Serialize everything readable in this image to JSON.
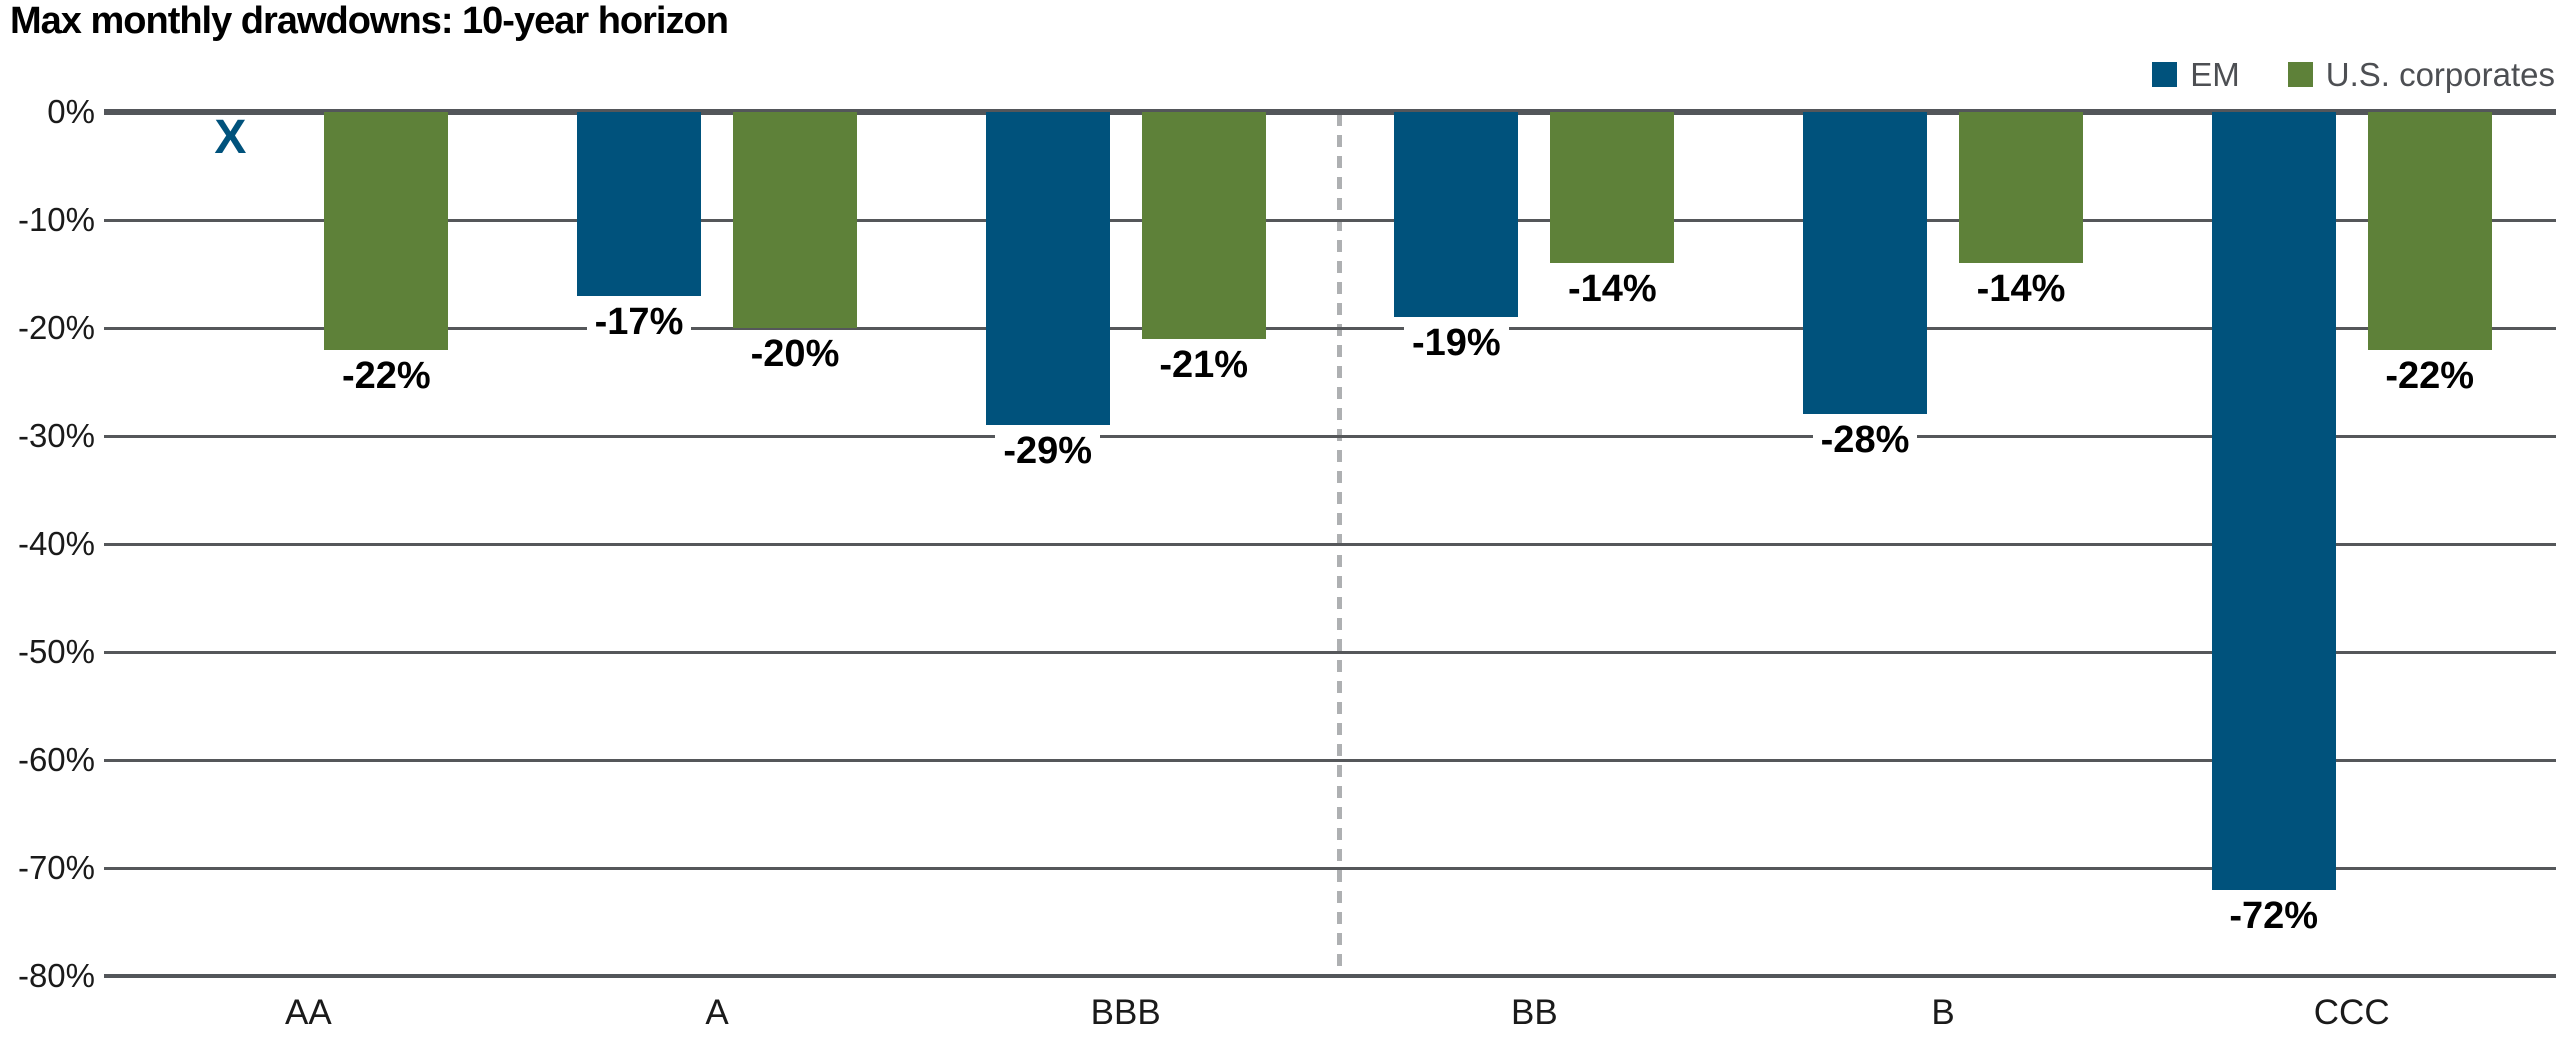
{
  "title": "Max monthly drawdowns: 10-year horizon",
  "legend": [
    {
      "label": "EM",
      "color": "#00527C"
    },
    {
      "label": "U.S. corporates",
      "color": "#5E8139"
    }
  ],
  "colors": {
    "em_blue": "#00527C",
    "corporates_green": "#5E8139",
    "gridline": "#55575A",
    "axis_line": "#53565A",
    "divider_dash": "#AEB0B2",
    "legend_text": "#4D4F53",
    "label_text": "#000000"
  },
  "chart_data": {
    "type": "bar",
    "title": "Max monthly drawdowns: 10-year horizon",
    "categories": [
      "AA",
      "A",
      "BBB",
      "BB",
      "B",
      "CCC"
    ],
    "series": [
      {
        "name": "EM",
        "color": "#00527C",
        "values": [
          null,
          -17,
          -29,
          -19,
          -28,
          -72
        ],
        "labels": [
          "X",
          "-17%",
          "-29%",
          "-19%",
          "-28%",
          "-72%"
        ]
      },
      {
        "name": "U.S. corporates",
        "color": "#5E8139",
        "values": [
          -22,
          -20,
          -21,
          -14,
          -14,
          -22
        ],
        "labels": [
          "-22%",
          "-20%",
          "-21%",
          "-14%",
          "-14%",
          "-22%"
        ]
      }
    ],
    "missing_marker": "X",
    "missing_marker_category": "AA",
    "ylim": [
      -80,
      0
    ],
    "yticks": [
      "0%",
      "-10%",
      "-20%",
      "-30%",
      "-40%",
      "-50%",
      "-60%",
      "-70%",
      "-80%"
    ],
    "grid": true,
    "divider_after_category": "BBB",
    "legend_position": "top-right",
    "value_labels_position": "below-bar"
  }
}
